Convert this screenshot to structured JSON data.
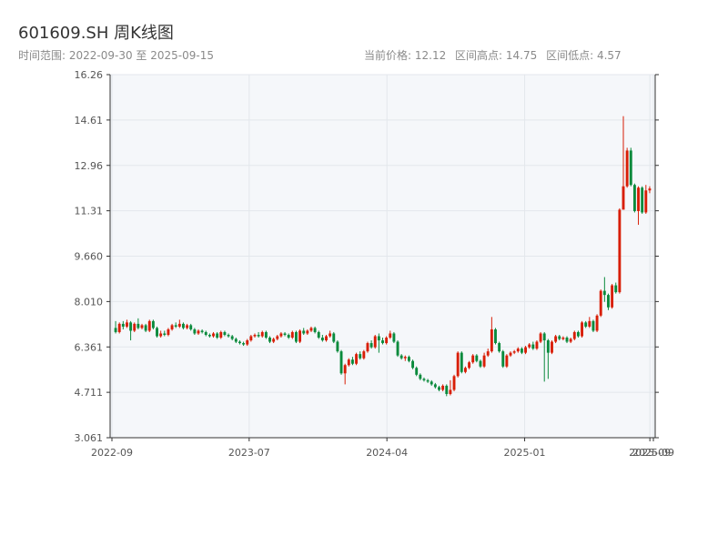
{
  "header": {
    "title": "601609.SH 周K线图",
    "subtitle": "时间范围: 2022-09-30 至 2025-09-15",
    "current_price": "当前价格: 12.12",
    "high": "区间高点: 14.75",
    "low": "区间低点: 4.57"
  },
  "colors": {
    "up": "#d81e06",
    "down": "#0a8a3c",
    "plot_bg": "#f5f7fa",
    "grid": "#e3e7ec",
    "axis": "#333333"
  },
  "chart_data": {
    "type": "candlestick",
    "title": "601609.SH 周K线图",
    "xlabel": "",
    "ylabel": "",
    "x_range": [
      "2022-09-30",
      "2025-09-15"
    ],
    "ylim": [
      3.061,
      16.26
    ],
    "y_ticks": [
      "3.061",
      "4.711",
      "6.361",
      "8.010",
      "9.660",
      "11.31",
      "12.96",
      "14.61",
      "16.26"
    ],
    "x_ticks": [
      {
        "date": "2022-09-30",
        "label": "2022-09"
      },
      {
        "date": "2023-07-01",
        "label": "2023-07"
      },
      {
        "date": "2024-04-01",
        "label": "2024-04"
      },
      {
        "date": "2025-01-01",
        "label": "2025-01"
      },
      {
        "date": "2025-09-08",
        "label": "2025-09"
      },
      {
        "date": "2025-09-15",
        "label": "2025-09"
      }
    ],
    "grid": true,
    "candles": [
      [
        7.05,
        6.9,
        7.3,
        6.85
      ],
      [
        6.9,
        7.2,
        7.25,
        6.85
      ],
      [
        7.2,
        7.1,
        7.3,
        7.0
      ],
      [
        7.1,
        7.25,
        7.35,
        7.05
      ],
      [
        7.25,
        6.95,
        7.3,
        6.6
      ],
      [
        6.95,
        7.2,
        7.25,
        6.9
      ],
      [
        7.2,
        7.05,
        7.4,
        7.0
      ],
      [
        7.05,
        7.15,
        7.2,
        7.0
      ],
      [
        7.15,
        6.95,
        7.2,
        6.9
      ],
      [
        6.95,
        7.3,
        7.35,
        6.9
      ],
      [
        7.3,
        7.05,
        7.35,
        7.0
      ],
      [
        7.05,
        6.75,
        7.1,
        6.7
      ],
      [
        6.75,
        6.85,
        6.95,
        6.7
      ],
      [
        6.85,
        6.8,
        6.95,
        6.75
      ],
      [
        6.8,
        7.0,
        7.05,
        6.75
      ],
      [
        7.0,
        7.15,
        7.2,
        6.95
      ],
      [
        7.15,
        7.1,
        7.25,
        7.05
      ],
      [
        7.1,
        7.2,
        7.35,
        7.05
      ],
      [
        7.2,
        7.05,
        7.25,
        7.0
      ],
      [
        7.05,
        7.15,
        7.2,
        7.0
      ],
      [
        7.15,
        7.0,
        7.2,
        6.95
      ],
      [
        7.0,
        6.85,
        7.05,
        6.8
      ],
      [
        6.85,
        6.95,
        7.0,
        6.8
      ],
      [
        6.95,
        6.9,
        7.0,
        6.85
      ],
      [
        6.9,
        6.8,
        6.95,
        6.75
      ],
      [
        6.8,
        6.75,
        6.85,
        6.7
      ],
      [
        6.75,
        6.85,
        6.9,
        6.7
      ],
      [
        6.85,
        6.7,
        6.9,
        6.65
      ],
      [
        6.7,
        6.9,
        6.95,
        6.65
      ],
      [
        6.9,
        6.8,
        6.95,
        6.75
      ],
      [
        6.8,
        6.75,
        6.85,
        6.7
      ],
      [
        6.75,
        6.65,
        6.8,
        6.6
      ],
      [
        6.65,
        6.55,
        6.7,
        6.5
      ],
      [
        6.55,
        6.5,
        6.6,
        6.45
      ],
      [
        6.5,
        6.45,
        6.55,
        6.4
      ],
      [
        6.45,
        6.6,
        6.65,
        6.4
      ],
      [
        6.6,
        6.75,
        6.8,
        6.55
      ],
      [
        6.75,
        6.8,
        6.85,
        6.7
      ],
      [
        6.8,
        6.75,
        6.9,
        6.7
      ],
      [
        6.75,
        6.9,
        6.95,
        6.7
      ],
      [
        6.9,
        6.7,
        6.95,
        6.65
      ],
      [
        6.7,
        6.55,
        6.75,
        6.5
      ],
      [
        6.55,
        6.65,
        6.7,
        6.5
      ],
      [
        6.65,
        6.75,
        6.8,
        6.6
      ],
      [
        6.75,
        6.85,
        6.9,
        6.7
      ],
      [
        6.85,
        6.8,
        6.9,
        6.75
      ],
      [
        6.8,
        6.7,
        6.85,
        6.65
      ],
      [
        6.7,
        6.9,
        6.95,
        6.65
      ],
      [
        6.9,
        6.55,
        6.95,
        6.5
      ],
      [
        6.55,
        6.95,
        7.0,
        6.5
      ],
      [
        6.95,
        6.85,
        7.05,
        6.8
      ],
      [
        6.85,
        6.95,
        7.0,
        6.8
      ],
      [
        6.95,
        7.05,
        7.1,
        6.9
      ],
      [
        7.05,
        6.9,
        7.1,
        6.85
      ],
      [
        6.9,
        6.7,
        6.95,
        6.65
      ],
      [
        6.7,
        6.6,
        6.8,
        6.55
      ],
      [
        6.6,
        6.75,
        6.8,
        6.55
      ],
      [
        6.75,
        6.85,
        6.95,
        6.7
      ],
      [
        6.85,
        6.55,
        6.9,
        6.5
      ],
      [
        6.55,
        6.2,
        6.6,
        6.15
      ],
      [
        6.2,
        5.4,
        6.25,
        5.35
      ],
      [
        5.4,
        5.7,
        5.75,
        5.0
      ],
      [
        5.7,
        5.9,
        5.95,
        5.65
      ],
      [
        5.9,
        5.75,
        6.0,
        5.7
      ],
      [
        5.75,
        6.1,
        6.15,
        5.7
      ],
      [
        6.1,
        5.95,
        6.2,
        5.9
      ],
      [
        5.95,
        6.2,
        6.25,
        5.9
      ],
      [
        6.2,
        6.5,
        6.55,
        6.15
      ],
      [
        6.5,
        6.35,
        6.6,
        6.3
      ],
      [
        6.35,
        6.75,
        6.8,
        6.3
      ],
      [
        6.75,
        6.6,
        6.85,
        6.15
      ],
      [
        6.6,
        6.5,
        6.7,
        6.45
      ],
      [
        6.5,
        6.7,
        6.75,
        6.45
      ],
      [
        6.7,
        6.85,
        6.95,
        6.65
      ],
      [
        6.85,
        6.55,
        6.9,
        6.5
      ],
      [
        6.55,
        6.05,
        6.6,
        6.0
      ],
      [
        6.05,
        5.95,
        6.1,
        5.9
      ],
      [
        5.95,
        6.0,
        6.05,
        5.85
      ],
      [
        6.0,
        5.85,
        6.05,
        5.8
      ],
      [
        5.85,
        5.6,
        5.9,
        5.55
      ],
      [
        5.6,
        5.35,
        5.65,
        5.3
      ],
      [
        5.35,
        5.2,
        5.4,
        5.15
      ],
      [
        5.2,
        5.15,
        5.25,
        5.1
      ],
      [
        5.15,
        5.1,
        5.2,
        5.05
      ],
      [
        5.1,
        5.0,
        5.15,
        4.95
      ],
      [
        5.0,
        4.9,
        5.05,
        4.85
      ],
      [
        4.9,
        4.8,
        4.95,
        4.75
      ],
      [
        4.8,
        4.95,
        5.0,
        4.75
      ],
      [
        4.95,
        4.65,
        5.0,
        4.57
      ],
      [
        4.65,
        4.8,
        5.15,
        4.6
      ],
      [
        4.8,
        5.3,
        5.35,
        4.75
      ],
      [
        5.3,
        6.15,
        6.2,
        5.25
      ],
      [
        6.15,
        5.45,
        6.2,
        5.4
      ],
      [
        5.45,
        5.6,
        5.65,
        5.4
      ],
      [
        5.6,
        5.8,
        5.85,
        5.55
      ],
      [
        5.8,
        6.05,
        6.1,
        5.75
      ],
      [
        6.05,
        5.85,
        6.1,
        5.8
      ],
      [
        5.85,
        5.65,
        5.9,
        5.6
      ],
      [
        5.65,
        6.05,
        6.15,
        5.6
      ],
      [
        6.05,
        6.2,
        6.3,
        6.0
      ],
      [
        6.2,
        7.0,
        7.45,
        6.15
      ],
      [
        7.0,
        6.5,
        7.05,
        6.45
      ],
      [
        6.5,
        6.2,
        6.55,
        6.15
      ],
      [
        6.2,
        5.65,
        6.25,
        5.6
      ],
      [
        5.65,
        6.05,
        6.1,
        5.6
      ],
      [
        6.05,
        6.15,
        6.2,
        6.0
      ],
      [
        6.15,
        6.2,
        6.25,
        6.1
      ],
      [
        6.2,
        6.3,
        6.35,
        6.15
      ],
      [
        6.3,
        6.15,
        6.35,
        6.1
      ],
      [
        6.15,
        6.35,
        6.4,
        6.1
      ],
      [
        6.35,
        6.45,
        6.5,
        6.3
      ],
      [
        6.45,
        6.3,
        6.55,
        6.25
      ],
      [
        6.3,
        6.55,
        6.6,
        6.25
      ],
      [
        6.55,
        6.85,
        6.9,
        6.5
      ],
      [
        6.85,
        6.6,
        6.9,
        5.1
      ],
      [
        6.6,
        6.15,
        6.65,
        5.2
      ],
      [
        6.15,
        6.55,
        6.6,
        6.1
      ],
      [
        6.55,
        6.75,
        6.8,
        6.5
      ],
      [
        6.75,
        6.65,
        6.8,
        6.6
      ],
      [
        6.65,
        6.7,
        6.75,
        6.6
      ],
      [
        6.7,
        6.55,
        6.75,
        6.5
      ],
      [
        6.55,
        6.65,
        6.7,
        6.5
      ],
      [
        6.65,
        6.9,
        6.95,
        6.6
      ],
      [
        6.9,
        6.75,
        6.95,
        6.7
      ],
      [
        6.75,
        7.25,
        7.3,
        6.7
      ],
      [
        7.25,
        7.1,
        7.3,
        7.05
      ],
      [
        7.1,
        7.3,
        7.45,
        7.05
      ],
      [
        7.3,
        6.95,
        7.35,
        6.9
      ],
      [
        6.95,
        7.5,
        7.55,
        6.9
      ],
      [
        7.5,
        8.4,
        8.45,
        7.45
      ],
      [
        8.4,
        8.25,
        8.9,
        8.0
      ],
      [
        8.25,
        7.8,
        8.3,
        7.7
      ],
      [
        7.8,
        8.6,
        8.65,
        7.75
      ],
      [
        8.6,
        8.35,
        8.7,
        8.3
      ],
      [
        8.35,
        11.35,
        11.4,
        8.3
      ],
      [
        11.35,
        12.2,
        14.75,
        12.0
      ],
      [
        12.2,
        13.5,
        13.6,
        12.15
      ],
      [
        13.5,
        12.25,
        13.6,
        12.2
      ],
      [
        12.25,
        11.3,
        12.3,
        11.25
      ],
      [
        11.3,
        12.15,
        12.2,
        10.8
      ],
      [
        12.15,
        11.25,
        12.2,
        11.2
      ],
      [
        11.25,
        12.05,
        12.25,
        11.2
      ],
      [
        12.05,
        12.12,
        12.2,
        11.95
      ]
    ]
  }
}
